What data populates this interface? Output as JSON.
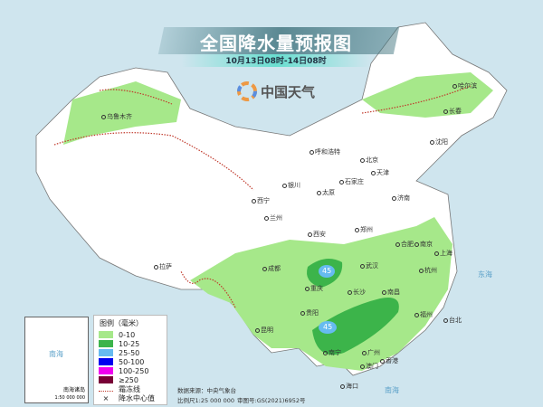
{
  "title": "全国降水量预报图",
  "subtitle": "10月13日08时-14日08时",
  "logo_text": "中国天气",
  "legend": {
    "heading": "图例（毫米）",
    "items": [
      {
        "label": "0-10",
        "color": "#a6e88a"
      },
      {
        "label": "10-25",
        "color": "#3cb44a"
      },
      {
        "label": "25-50",
        "color": "#66bbf0"
      },
      {
        "label": "50-100",
        "color": "#0000f0"
      },
      {
        "label": "100-250",
        "color": "#f000f0"
      },
      {
        "label": "≥250",
        "color": "#780036"
      }
    ],
    "frost_label": "霜冻线",
    "center_label": "降水中心值"
  },
  "footer": {
    "source": "数据来源：中央气象台",
    "scale": "比例尺1:25 000 000",
    "review": "审图号:GS(2021)6952号"
  },
  "inset": {
    "title": "南海诸岛",
    "scale": "1:50 000 000",
    "sea": "南海"
  },
  "centers": [
    "45",
    "45"
  ],
  "cities": [
    "乌鲁木齐",
    "哈尔滨",
    "长春",
    "沈阳",
    "呼和浩特",
    "北京",
    "天津",
    "石家庄",
    "太原",
    "银川",
    "济南",
    "西宁",
    "兰州",
    "郑州",
    "西安",
    "合肥",
    "南京",
    "上海",
    "武汉",
    "成都",
    "拉萨",
    "重庆",
    "杭州",
    "长沙",
    "南昌",
    "贵阳",
    "昆明",
    "福州",
    "台北",
    "南宁",
    "广州",
    "香港",
    "澳门",
    "海口"
  ],
  "seas": [
    "东海",
    "南海"
  ]
}
